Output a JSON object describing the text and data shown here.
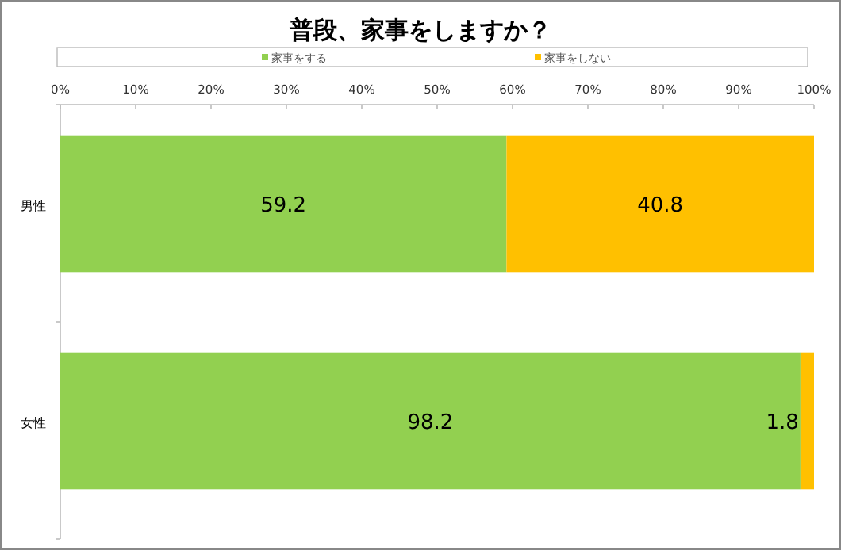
{
  "chart_data": {
    "type": "bar",
    "orientation": "horizontal",
    "stacked": true,
    "title": "普段、家事をしますか？",
    "categories": [
      "男性",
      "女性"
    ],
    "series": [
      {
        "name": "家事をする",
        "color": "#92d050",
        "values": [
          59.2,
          98.2
        ]
      },
      {
        "name": "家事をしない",
        "color": "#ffc000",
        "values": [
          40.8,
          1.8
        ]
      }
    ],
    "xlim": [
      0,
      100
    ],
    "xticks": [
      {
        "value": 0,
        "label": "0%"
      },
      {
        "value": 10,
        "label": "10%"
      },
      {
        "value": 20,
        "label": "20%"
      },
      {
        "value": 30,
        "label": "30%"
      },
      {
        "value": 40,
        "label": "40%"
      },
      {
        "value": 50,
        "label": "50%"
      },
      {
        "value": 60,
        "label": "60%"
      },
      {
        "value": 70,
        "label": "70%"
      },
      {
        "value": 80,
        "label": "80%"
      },
      {
        "value": 90,
        "label": "90%"
      },
      {
        "value": 100,
        "label": "100%"
      }
    ],
    "data_labels": true,
    "legend": "top"
  }
}
